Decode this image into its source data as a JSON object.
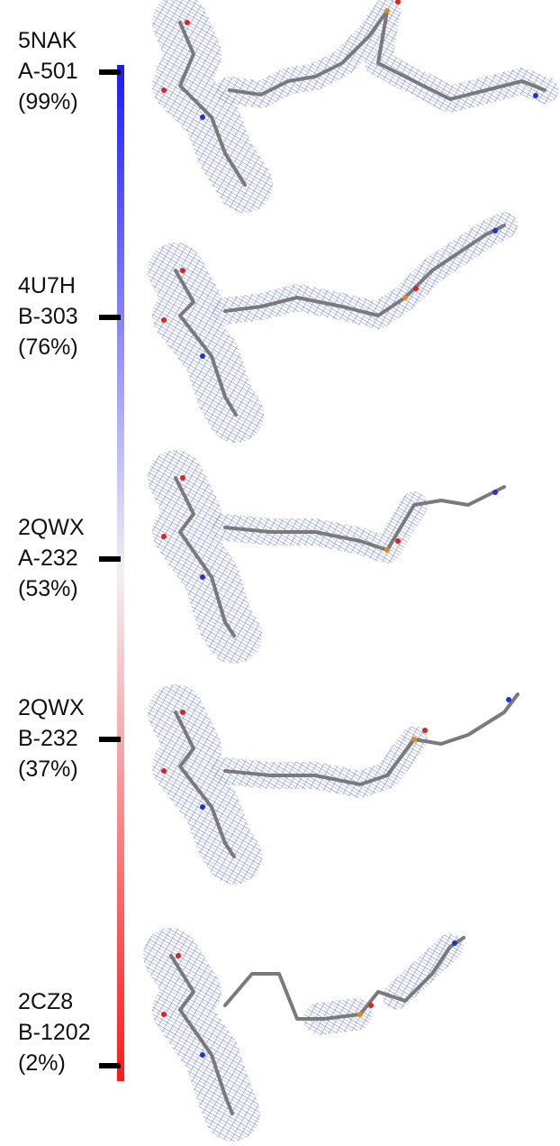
{
  "colors": {
    "top": "#1a1aff",
    "middle": "#f2f0f4",
    "bottom": "#ff1a1a",
    "mesh": "#6677cc",
    "stick": "#7a7a7a"
  },
  "entries": [
    {
      "pdb": "5NAK",
      "chain": "A-501",
      "percent": "(99%)"
    },
    {
      "pdb": "4U7H",
      "chain": "B-303",
      "percent": "(76%)"
    },
    {
      "pdb": "2QWX",
      "chain": "A-232",
      "percent": "(53%)"
    },
    {
      "pdb": "2QWX",
      "chain": "B-232",
      "percent": "(37%)"
    },
    {
      "pdb": "2CZ8",
      "chain": "B-1202",
      "percent": "(2%)"
    }
  ]
}
